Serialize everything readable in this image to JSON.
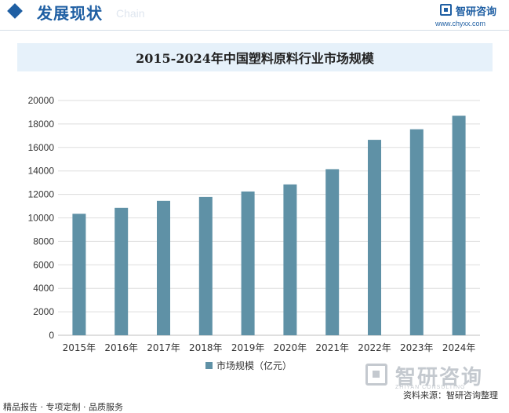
{
  "header": {
    "section_title": "发展现状",
    "section_subtitle": "Chain",
    "logo_name": "智研咨询",
    "logo_url": "www.chyxx.com"
  },
  "watermark": {
    "name": "智研咨询",
    "slogan": "ZHIYAN CONSULTING"
  },
  "source": "资料来源：智研咨询整理",
  "footer": "精品报告 · 专项定制 · 品质服务",
  "colors": {
    "bar": "#5f91a6",
    "brand": "#1f5fa3",
    "title_band": "#e6f1fa"
  },
  "chart_data": {
    "type": "bar",
    "title": "2015-2024年中国塑料原料行业市场规模",
    "categories": [
      "2015年",
      "2016年",
      "2017年",
      "2018年",
      "2019年",
      "2020年",
      "2021年",
      "2022年",
      "2023年",
      "2024年"
    ],
    "series": [
      {
        "name": "市场规模（亿元）",
        "values": [
          10350,
          10850,
          11450,
          11780,
          12250,
          12850,
          14150,
          16650,
          17550,
          18700
        ]
      }
    ],
    "ylim": [
      0,
      20000
    ],
    "yticks": [
      0,
      2000,
      4000,
      6000,
      8000,
      10000,
      12000,
      14000,
      16000,
      18000,
      20000
    ],
    "grid": true,
    "legend": "bottom"
  }
}
